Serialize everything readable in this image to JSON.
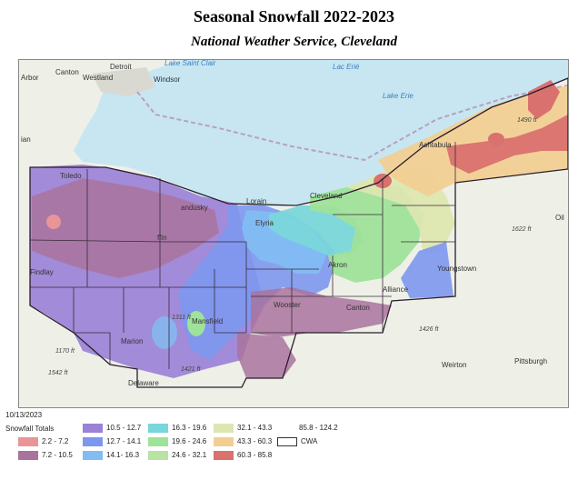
{
  "title": "Seasonal Snowfall 2022-2023",
  "subtitle": "National Weather Service, Cleveland",
  "map": {
    "places": {
      "detroit": "Detroit",
      "canton_mi": "Canton",
      "westland": "Westland",
      "arbor": "Arbor",
      "windsor": "Windsor",
      "ian": "ian",
      "toledo": "Toledo",
      "sandusky": "andusky",
      "lorain": "Lorain",
      "elyria": "Elyria",
      "cleveland": "Cleveland",
      "ashtabula": "Ashtabula",
      "akron": "Akron",
      "youngstown": "Youngstown",
      "alliance": "Alliance",
      "canton_oh": "Canton",
      "wooster": "Wooster",
      "mansfield": "Mansfield",
      "marion": "Marion",
      "findlay": "Findlay",
      "delaware": "Delaware",
      "weirton": "Weirton",
      "pittsburgh": "Pittsburgh",
      "oil": "Oil",
      "tiffin": "ffin"
    },
    "water": {
      "lake_erie": "Lake Erie",
      "lac_erie": "Lac Erié",
      "lake_st_clair": "Lake Saint Clair"
    },
    "elevations": {
      "e1490": "1490 ft",
      "e1622": "1622 ft",
      "e1426": "1426 ft",
      "e1170": "1170 ft",
      "e1542": "1542 ft",
      "e1311": "1311 ft",
      "e1421": "1421 ft"
    }
  },
  "legend": {
    "date": "10/13/2023",
    "heading": "Snowfall Totals",
    "classes": [
      {
        "label": "2.2 - 7.2",
        "color": "#e99598"
      },
      {
        "label": "7.2 - 10.5",
        "color": "#a9739e"
      },
      {
        "label": "10.5 - 12.7",
        "color": "#9b82d6"
      },
      {
        "label": "12.7 - 14.1",
        "color": "#7d97f0"
      },
      {
        "label": "14.1- 16.3",
        "color": "#82bdf2"
      },
      {
        "label": "16.3 - 19.6",
        "color": "#79d6da"
      },
      {
        "label": "19.6 - 24.6",
        "color": "#9fe29a"
      },
      {
        "label": "24.6 - 32.1",
        "color": "#b7e3a3"
      },
      {
        "label": "32.1 - 43.3",
        "color": "#dde6b0"
      },
      {
        "label": "43.3 - 60.3",
        "color": "#f1cf94"
      },
      {
        "label": "60.3 - 85.8",
        "color": "#d9716f"
      },
      {
        "label": "85.8 - 124.2",
        "color": ""
      }
    ],
    "cwa_label": "CWA"
  }
}
